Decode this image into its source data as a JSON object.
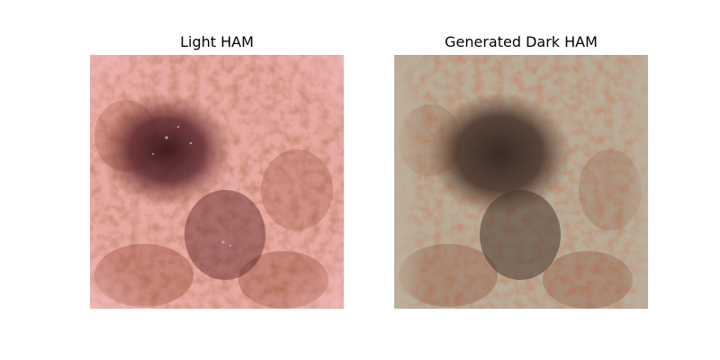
{
  "panels": [
    {
      "title": "Light HAM"
    },
    {
      "title": "Generated Dark HAM"
    }
  ],
  "palette": {
    "light": {
      "background": "#e9a9a3",
      "edge": "#f2b8bc",
      "network": "#9c4a36",
      "core": "#3f1a1e",
      "core_mid": "#5e2a28",
      "highlight": "#a9b4cc"
    },
    "dark": {
      "background": "#b8ab98",
      "edge": "#c2b6a2",
      "network": "#8c4a34",
      "core": "#3b2f28",
      "core_mid": "#4a3429",
      "highlight": "#b6ab9a"
    }
  }
}
